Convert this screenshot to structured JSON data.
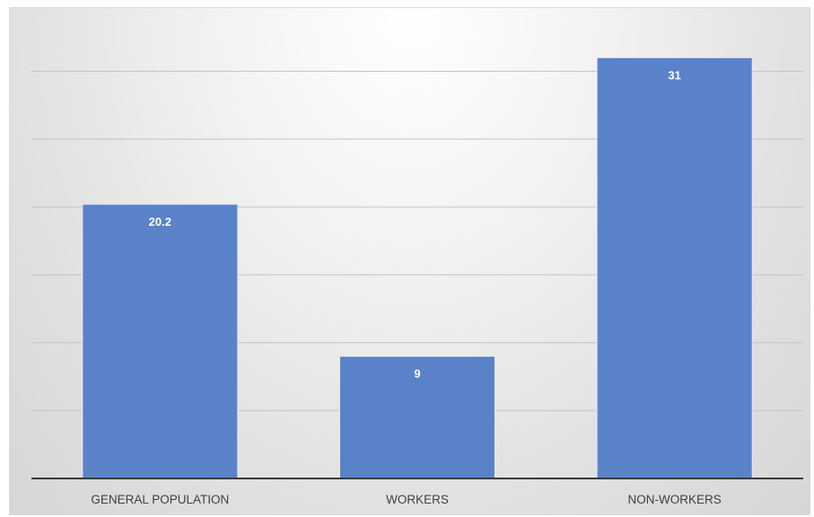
{
  "chart_data": {
    "type": "bar",
    "title": "",
    "xlabel": "",
    "ylabel": "",
    "categories": [
      "GENERAL POPULATION",
      "WORKERS",
      "NON-WORKERS"
    ],
    "values": [
      20.2,
      9,
      31
    ],
    "value_labels": [
      "20.2",
      "9",
      "31"
    ],
    "ylim": [
      0,
      40
    ],
    "gridlines": [
      5,
      10,
      15,
      20,
      25,
      30,
      35,
      40
    ],
    "grid": true,
    "legend": "none",
    "colors": {
      "bar": "#5a82c8",
      "label": "#ffffff",
      "axis_text": "#404040"
    }
  }
}
